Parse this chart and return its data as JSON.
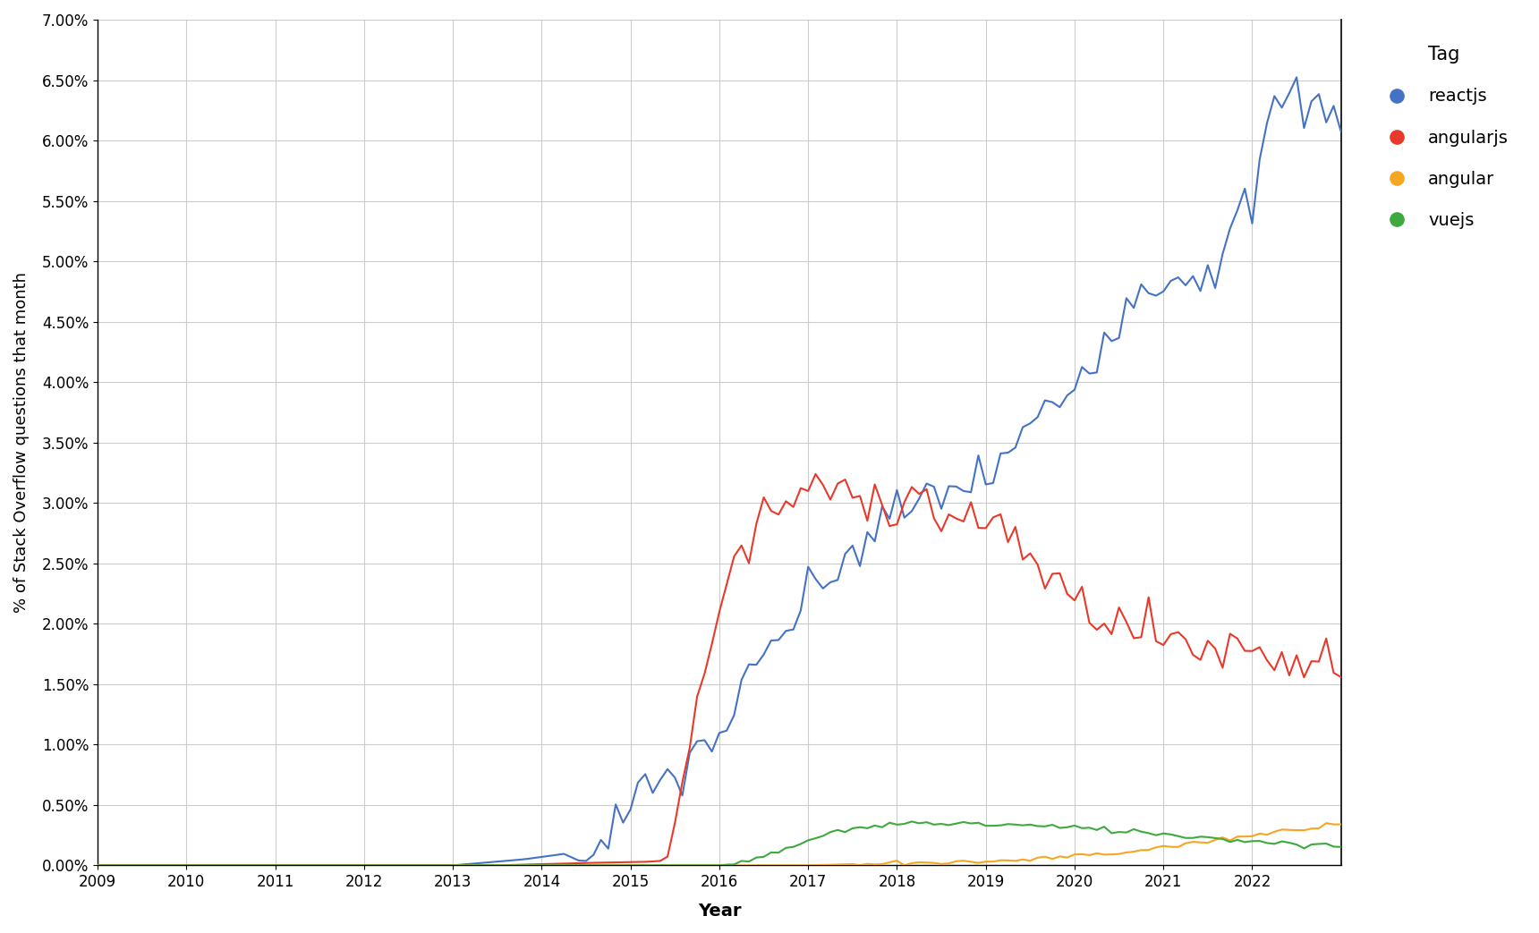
{
  "xlabel": "Year",
  "ylabel": "% of Stack Overflow questions that month",
  "background_color": "#ffffff",
  "grid_color": "#cccccc",
  "legend_title": "Tag",
  "series": {
    "reactjs": {
      "color": "#4472C4",
      "label": "reactjs"
    },
    "angularjs": {
      "color": "#E8392A",
      "label": "angularjs"
    },
    "angular": {
      "color": "#F5A623",
      "label": "angular"
    },
    "vuejs": {
      "color": "#3DAA3D",
      "label": "vuejs"
    }
  },
  "x_ticks": [
    2009,
    2010,
    2011,
    2012,
    2013,
    2014,
    2015,
    2016,
    2017,
    2018,
    2019,
    2020,
    2021,
    2022
  ],
  "ylim": [
    0.0,
    0.07
  ],
  "yticks": [
    0.0,
    0.005,
    0.01,
    0.015,
    0.02,
    0.025,
    0.03,
    0.035,
    0.04,
    0.045,
    0.05,
    0.055,
    0.06,
    0.065,
    0.07
  ]
}
